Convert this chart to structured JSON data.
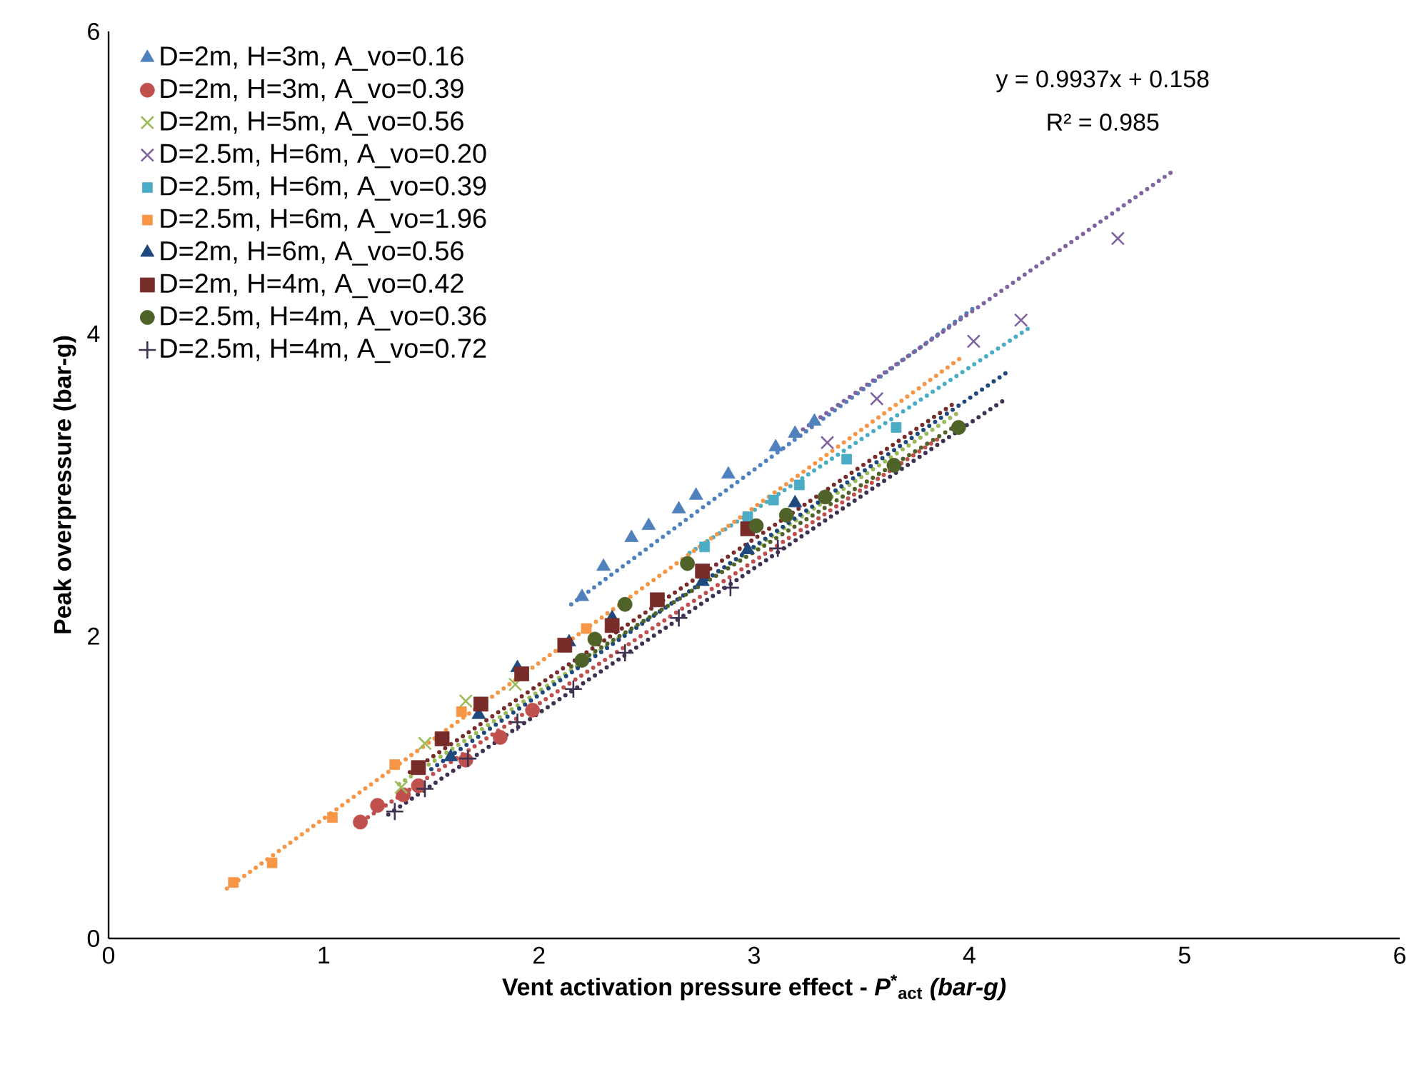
{
  "chart_data": {
    "type": "scatter",
    "xlabel": "Vent activation pressure effect - *P*$^{*}$$_{act}$ *(bar-g)*",
    "ylabel": "Peak overpressure (bar-g)",
    "annotations": [
      "y = 0.9937x + 0.158",
      "R² = 0.985"
    ],
    "xlim": [
      0,
      6
    ],
    "ylim": [
      0,
      6
    ],
    "xticks": [
      0,
      1,
      2,
      3,
      4,
      5,
      6
    ],
    "yticks": [
      0,
      2,
      4,
      6
    ],
    "grid": false,
    "legend": "top left",
    "series": [
      {
        "name": "D=2m, H=3m, A_vo=0.16",
        "color": "#4f81bd",
        "marker": "triangle",
        "x": [
          2.2,
          2.3,
          2.43,
          2.51,
          2.65,
          2.73,
          2.88,
          3.1,
          3.19,
          3.28
        ],
        "values": [
          2.26,
          2.46,
          2.65,
          2.73,
          2.84,
          2.93,
          3.07,
          3.25,
          3.34,
          3.42
        ]
      },
      {
        "name": "D=2m, H=3m, A_vo=0.39",
        "color": "#c0504d",
        "marker": "circle",
        "x": [
          1.17,
          1.25,
          1.37,
          1.44,
          1.66,
          1.82,
          1.97
        ],
        "values": [
          0.77,
          0.88,
          0.95,
          1.01,
          1.18,
          1.33,
          1.51
        ]
      },
      {
        "name": "D=2m, H=5m, A_vo=0.56",
        "color": "#9bbb59",
        "marker": "cross",
        "x": [
          1.36,
          1.47,
          1.66,
          1.89
        ],
        "values": [
          1.0,
          1.29,
          1.57,
          1.68
        ]
      },
      {
        "name": "D=2.5m, H=6m, A_vo=0.20",
        "color": "#8064a2",
        "marker": "cross",
        "x": [
          3.34,
          3.57,
          4.02,
          4.24,
          4.69
        ],
        "values": [
          3.28,
          3.57,
          3.95,
          4.09,
          4.63
        ]
      },
      {
        "name": "D=2.5m, H=6m, A_vo=0.39",
        "color": "#4bacc6",
        "marker": "square",
        "x": [
          2.77,
          2.97,
          3.09,
          3.21,
          3.43,
          3.66
        ],
        "values": [
          2.59,
          2.79,
          2.9,
          3.0,
          3.17,
          3.38
        ]
      },
      {
        "name": "D=2.5m, H=6m, A_vo=1.96",
        "color": "#f79646",
        "marker": "square",
        "x": [
          0.58,
          0.76,
          1.04,
          1.33,
          1.64,
          2.22
        ],
        "values": [
          0.37,
          0.5,
          0.8,
          1.15,
          1.5,
          2.05
        ]
      },
      {
        "name": "D=2m, H=6m, A_vo=0.56",
        "color": "#1f497d",
        "marker": "triangle",
        "x": [
          1.59,
          1.72,
          1.9,
          2.14,
          2.34,
          2.76,
          2.97,
          3.19
        ],
        "values": [
          1.2,
          1.48,
          1.79,
          1.96,
          2.12,
          2.36,
          2.57,
          2.88
        ]
      },
      {
        "name": "D=2m, H=4m, A_vo=0.42",
        "color": "#772c2a",
        "marker": "square",
        "x": [
          1.44,
          1.55,
          1.73,
          1.92,
          2.12,
          2.34,
          2.55,
          2.76,
          2.97
        ],
        "values": [
          1.13,
          1.32,
          1.55,
          1.75,
          1.94,
          2.07,
          2.24,
          2.43,
          2.71
        ]
      },
      {
        "name": "D=2.5m, H=4m, A_vo=0.36",
        "color": "#4f6228",
        "marker": "circle",
        "x": [
          2.2,
          2.26,
          2.4,
          2.69,
          3.01,
          3.15,
          3.33,
          3.65,
          3.95
        ],
        "values": [
          1.84,
          1.98,
          2.21,
          2.48,
          2.73,
          2.8,
          2.92,
          3.13,
          3.38
        ]
      },
      {
        "name": "D=2.5m, H=4m, A_vo=0.72",
        "color": "#3f3151",
        "marker": "plus",
        "x": [
          1.33,
          1.47,
          1.67,
          1.9,
          2.16,
          2.4,
          2.65,
          2.89,
          3.11
        ],
        "values": [
          0.84,
          0.99,
          1.19,
          1.43,
          1.65,
          1.89,
          2.12,
          2.32,
          2.58
        ]
      },
      {
        "type": "line",
        "line_style": "dotted",
        "color": "#4f81bd",
        "x": [
          2.15,
          4.02
        ],
        "values": [
          2.21,
          4.17
        ]
      },
      {
        "type": "line",
        "line_style": "dotted",
        "color": "#c0504d",
        "x": [
          1.15,
          3.85
        ],
        "values": [
          0.75,
          3.3
        ]
      },
      {
        "type": "line",
        "line_style": "dotted",
        "color": "#9bbb59",
        "x": [
          1.35,
          3.95
        ],
        "values": [
          1.02,
          3.48
        ]
      },
      {
        "type": "line",
        "line_style": "dotted",
        "color": "#8064a2",
        "x": [
          3.2,
          4.95
        ],
        "values": [
          3.34,
          5.08
        ]
      },
      {
        "type": "line",
        "line_style": "dotted",
        "color": "#4bacc6",
        "x": [
          2.7,
          4.29
        ],
        "values": [
          2.55,
          4.05
        ]
      },
      {
        "type": "line",
        "line_style": "dotted",
        "color": "#f79646",
        "x": [
          0.55,
          3.96
        ],
        "values": [
          0.33,
          3.84
        ]
      },
      {
        "type": "line",
        "line_style": "dotted",
        "color": "#1f497d",
        "x": [
          1.5,
          4.18
        ],
        "values": [
          1.12,
          3.75
        ]
      },
      {
        "type": "line",
        "line_style": "dotted",
        "color": "#772c2a",
        "x": [
          1.4,
          3.93
        ],
        "values": [
          1.1,
          3.54
        ]
      },
      {
        "type": "line",
        "line_style": "dotted",
        "color": "#4f6228",
        "x": [
          2.15,
          3.97
        ],
        "values": [
          1.8,
          3.42
        ]
      },
      {
        "type": "line",
        "line_style": "dotted",
        "color": "#3f3151",
        "x": [
          1.3,
          4.16
        ],
        "values": [
          0.82,
          3.56
        ]
      }
    ]
  }
}
